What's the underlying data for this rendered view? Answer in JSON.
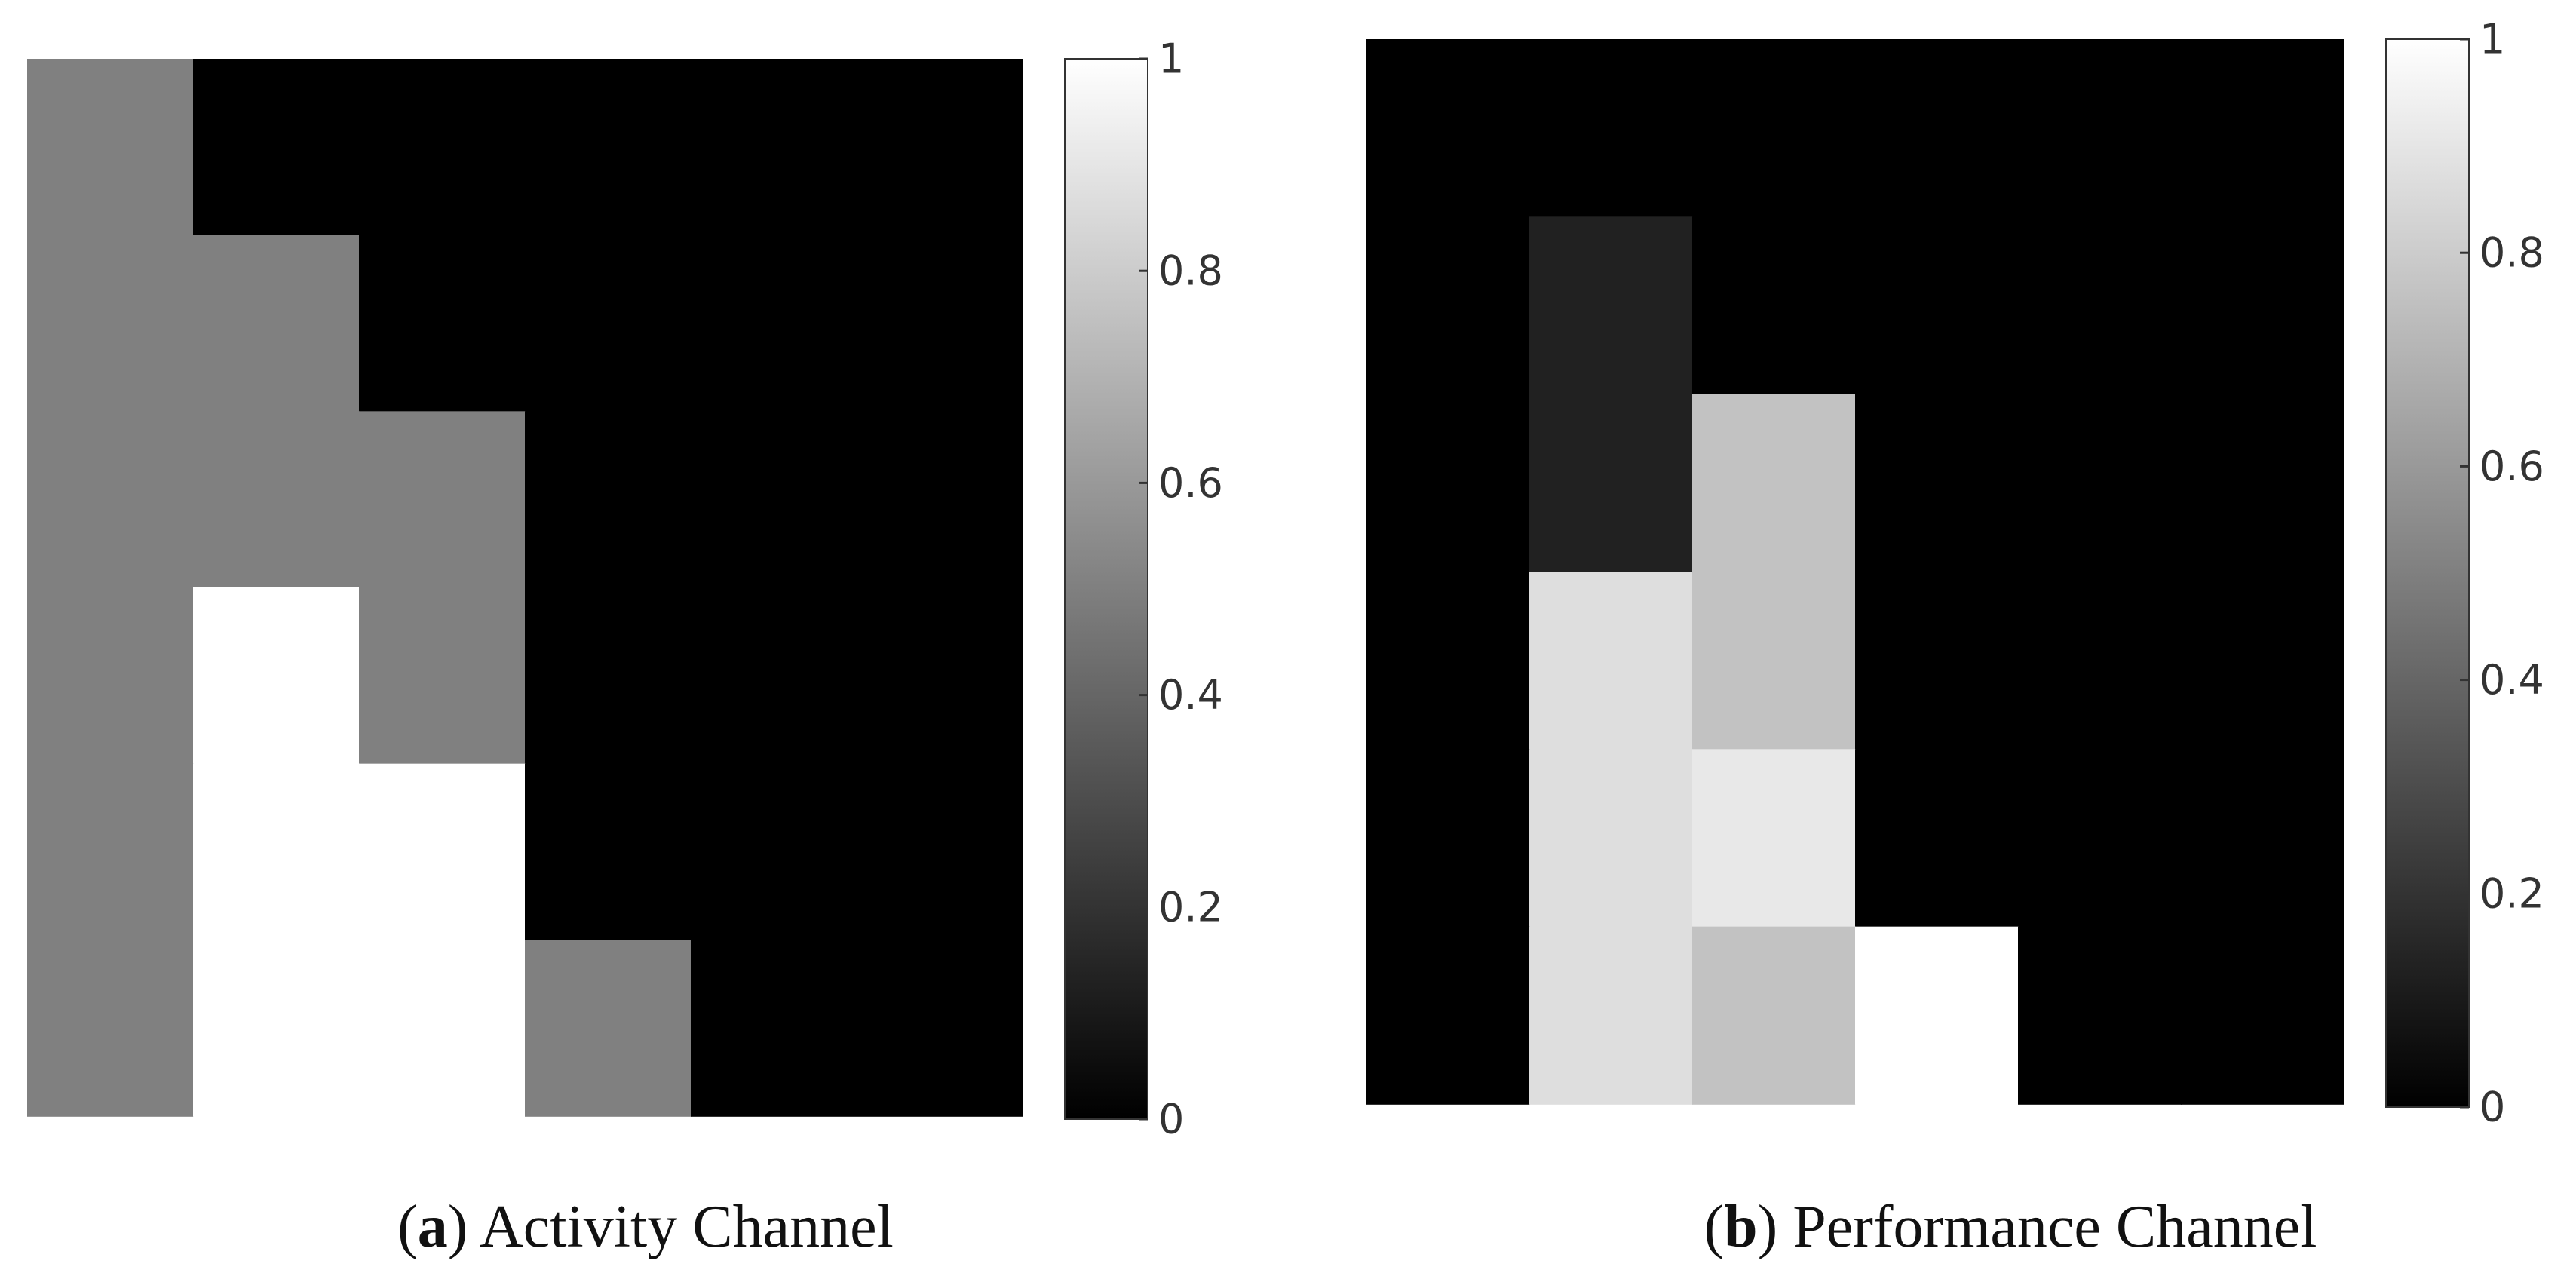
{
  "chart_data": [
    {
      "type": "heatmap",
      "caption_letter": "a",
      "caption_text": "Activity Channel",
      "colormap": "gray",
      "clim": [
        0,
        1
      ],
      "colorbar_ticks": [
        "0",
        "0.2",
        "0.4",
        "0.6",
        "0.8",
        "1"
      ],
      "colorbar_tick_values": [
        0,
        0.2,
        0.4,
        0.6,
        0.8,
        1
      ],
      "values": [
        [
          0.5,
          0,
          0,
          0,
          0,
          0
        ],
        [
          0.5,
          0.5,
          0,
          0,
          0,
          0
        ],
        [
          0.5,
          0.5,
          0.5,
          0,
          0,
          0
        ],
        [
          0.5,
          1,
          0.5,
          0,
          0,
          0
        ],
        [
          0.5,
          1,
          1,
          0,
          0,
          0
        ],
        [
          0.5,
          1,
          1,
          0.5,
          0,
          0
        ]
      ]
    },
    {
      "type": "heatmap",
      "caption_letter": "b",
      "caption_text": "Performance Channel",
      "colormap": "gray",
      "clim": [
        0,
        1
      ],
      "colorbar_ticks": [
        "0",
        "0.2",
        "0.4",
        "0.6",
        "0.8",
        "1"
      ],
      "colorbar_tick_values": [
        0,
        0.2,
        0.4,
        0.6,
        0.8,
        1
      ],
      "values": [
        [
          0,
          0,
          0,
          0,
          0,
          0
        ],
        [
          0,
          0.13,
          0,
          0,
          0,
          0
        ],
        [
          0,
          0.13,
          0.76,
          0,
          0,
          0
        ],
        [
          0,
          0.87,
          0.76,
          0,
          0,
          0
        ],
        [
          0,
          0.87,
          0.91,
          0,
          0,
          0
        ],
        [
          0,
          0.87,
          0.76,
          1,
          0,
          0
        ]
      ]
    }
  ]
}
